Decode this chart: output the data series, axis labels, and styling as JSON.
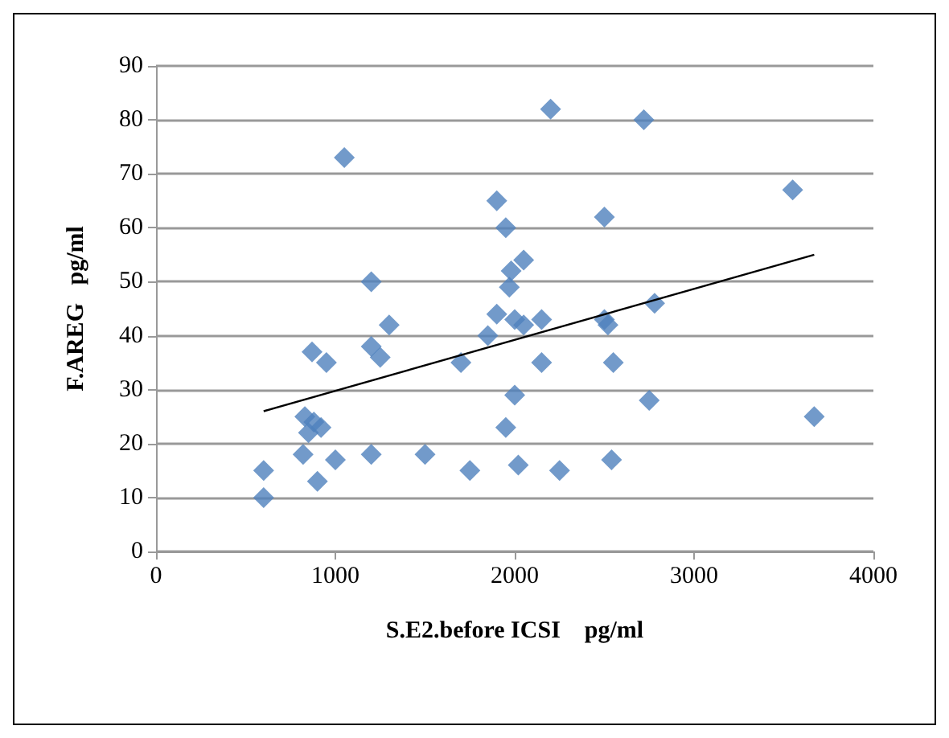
{
  "chart_data": {
    "type": "scatter",
    "xlabel": "S.E2.before ICSI    pg/ml",
    "ylabel": "F.AREG   pg/ml",
    "xlim": [
      0,
      4000
    ],
    "xticks": [
      0,
      1000,
      2000,
      3000,
      4000
    ],
    "ylim": [
      0,
      90
    ],
    "yticks": [
      0,
      10,
      20,
      30,
      40,
      50,
      60,
      70,
      80,
      90
    ],
    "grid": "y",
    "series": [
      {
        "marker": "diamond",
        "color": "#4f81bd",
        "x": [
          600,
          600,
          820,
          830,
          850,
          870,
          880,
          900,
          920,
          950,
          1050,
          1000,
          1200,
          1200,
          1250,
          1300,
          1200,
          1500,
          1700,
          1750,
          1850,
          1900,
          1900,
          1950,
          1950,
          1970,
          1980,
          2000,
          2000,
          2020,
          2050,
          2050,
          2150,
          2150,
          2200,
          2250,
          2500,
          2500,
          2520,
          2550,
          2540,
          2720,
          2750,
          2780,
          3550,
          3670
        ],
        "values": [
          15,
          10,
          18,
          25,
          22,
          37,
          24,
          13,
          23,
          35,
          73,
          17,
          50,
          38,
          36,
          42,
          18,
          18,
          35,
          15,
          40,
          65,
          44,
          60,
          23,
          49,
          52,
          29,
          43,
          16,
          54,
          42,
          43,
          35,
          82,
          15,
          62,
          43,
          42,
          35,
          17,
          80,
          28,
          46,
          67,
          25
        ]
      },
      {
        "type": "line",
        "color": "#000000",
        "x": [
          600,
          3670
        ],
        "values": [
          26,
          55
        ]
      }
    ]
  }
}
